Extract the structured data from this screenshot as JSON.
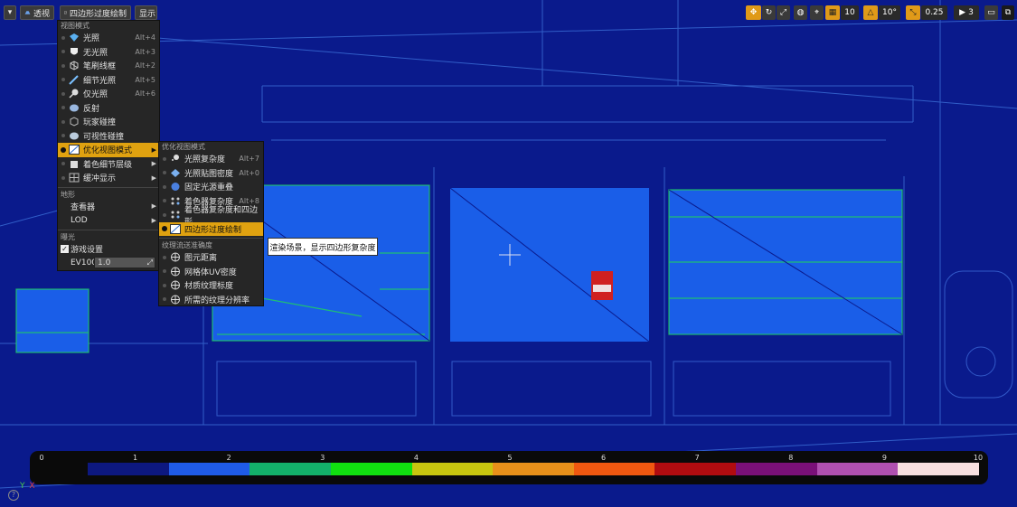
{
  "toolbar": {
    "menu_arrow": "▾",
    "perspective": "透视",
    "view_mode": "四边形过度绘制",
    "show": "显示"
  },
  "right_toolbar": {
    "grid_snap": "10",
    "rotation_snap": "10°",
    "scale_snap": "0.25",
    "camera_speed": "3"
  },
  "view_mode_menu": {
    "section_view_mode": "视图模式",
    "items": [
      {
        "label": "光照",
        "shortcut": "Alt+4",
        "icon": "lit-icon"
      },
      {
        "label": "无光照",
        "shortcut": "Alt+3",
        "icon": "unlit-icon"
      },
      {
        "label": "笔刷线框",
        "shortcut": "Alt+2",
        "icon": "wireframe-icon"
      },
      {
        "label": "细节光照",
        "shortcut": "Alt+5",
        "icon": "detail-lighting-icon"
      },
      {
        "label": "仅光照",
        "shortcut": "Alt+6",
        "icon": "lighting-only-icon"
      },
      {
        "label": "反射",
        "shortcut": "",
        "icon": "reflection-icon"
      },
      {
        "label": "玩家碰撞",
        "shortcut": "",
        "icon": "player-collision-icon"
      },
      {
        "label": "可视性碰撞",
        "shortcut": "",
        "icon": "visibility-collision-icon"
      },
      {
        "label": "优化视图模式",
        "shortcut": "",
        "icon": "optimization-icon"
      },
      {
        "label": "着色细节层级",
        "shortcut": "",
        "icon": "lod-coloration-icon"
      },
      {
        "label": "缓冲显示",
        "shortcut": "",
        "icon": "buffer-icon"
      }
    ],
    "section_landscape": "地形",
    "viewer": "查看器",
    "lod": "LOD",
    "section_exposure": "曝光",
    "game_settings": "游戏设置",
    "ev100_label": "EV100",
    "ev100_value": "1.0"
  },
  "optimization_submenu": {
    "section_title": "优化视图模式",
    "items": [
      {
        "label": "光照复杂度",
        "shortcut": "Alt+7",
        "icon": "light-complexity-icon"
      },
      {
        "label": "光照贴图密度",
        "shortcut": "Alt+0",
        "icon": "lightmap-density-icon"
      },
      {
        "label": "固定光源重叠",
        "shortcut": "",
        "icon": "stationary-light-overlap-icon"
      },
      {
        "label": "着色器复杂度",
        "shortcut": "Alt+8",
        "icon": "shader-complexity-icon"
      },
      {
        "label": "着色器复杂度和四边形",
        "shortcut": "",
        "icon": "shader-complexity-quads-icon"
      },
      {
        "label": "四边形过度绘制",
        "shortcut": "",
        "icon": "quad-overdraw-icon"
      }
    ],
    "section_texture": "纹理流送准确度",
    "texture_items": [
      {
        "label": "图元距离",
        "icon": "primitive-distance-icon"
      },
      {
        "label": "网格体UV密度",
        "icon": "mesh-uv-density-icon"
      },
      {
        "label": "材质纹理标度",
        "icon": "material-texture-scale-icon"
      },
      {
        "label": "所需的纹理分辨率",
        "icon": "required-texture-resolution-icon"
      }
    ]
  },
  "tooltip": "渲染场景，显示四边形复杂度",
  "legend": {
    "ticks": [
      "0",
      "1",
      "2",
      "3",
      "4",
      "5",
      "6",
      "7",
      "8",
      "9",
      "10"
    ],
    "colors": [
      "#0d1880",
      "#1f5be8",
      "#13b06a",
      "#11e010",
      "#c8c60f",
      "#e8901a",
      "#f05810",
      "#b00c10",
      "#7a1078",
      "#b050b0",
      "#f8e0e0"
    ]
  },
  "axis": {
    "y": "Y",
    "x": "X"
  },
  "help": "?"
}
